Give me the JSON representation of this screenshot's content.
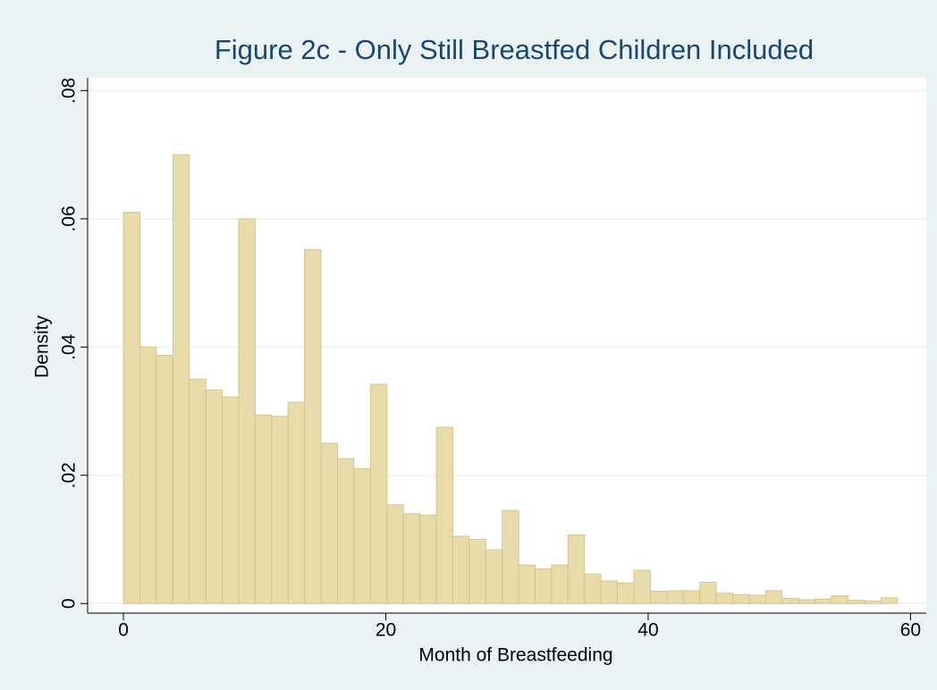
{
  "chart_data": {
    "type": "histogram",
    "title": "Figure 2c - Only Still Breastfed Children Included",
    "x_label": "Month of Breastfeeding",
    "y_label": "Density",
    "bins": [
      0,
      1.26,
      2.51,
      3.77,
      5.02,
      6.28,
      7.53,
      8.79,
      10.04,
      11.3,
      12.55,
      13.81,
      15.06,
      16.32,
      17.57,
      18.83,
      20.09,
      21.34,
      22.6,
      23.85,
      25.11,
      26.36,
      27.62,
      28.87,
      30.13,
      31.38,
      32.64,
      33.89,
      35.15,
      36.4,
      37.66,
      38.91,
      40.17,
      41.43,
      42.68,
      43.94,
      45.19,
      46.45,
      47.7,
      48.96,
      50.21,
      51.47,
      52.72,
      53.98,
      55.23,
      56.49,
      57.74,
      59
    ],
    "values": [
      0.061,
      0.04,
      0.0387,
      0.07,
      0.035,
      0.0333,
      0.0322,
      0.06,
      0.0294,
      0.0292,
      0.0314,
      0.0552,
      0.025,
      0.0226,
      0.021,
      0.0342,
      0.0154,
      0.014,
      0.0138,
      0.0275,
      0.0105,
      0.01,
      0.0084,
      0.0145,
      0.006,
      0.0054,
      0.006,
      0.0107,
      0.0046,
      0.0035,
      0.0032,
      0.0052,
      0.0019,
      0.002,
      0.002,
      0.0033,
      0.0016,
      0.0014,
      0.0013,
      0.002,
      0.0008,
      0.0006,
      0.0007,
      0.0012,
      0.0005,
      0.0004,
      0.0009
    ],
    "color": "#e8dcaa",
    "xlim": [
      -2.73,
      61.2
    ],
    "ylim": [
      -0.0015,
      0.082
    ],
    "xticks": [
      0,
      20,
      40,
      60
    ],
    "yticks": [
      0,
      {
        "value": 0.02,
        "label": ".02"
      },
      {
        "value": 0.04,
        "label": ".04"
      },
      {
        "value": 0.06,
        "label": ".06"
      },
      {
        "value": 0.08,
        "label": ".08"
      }
    ],
    "grid": true
  }
}
